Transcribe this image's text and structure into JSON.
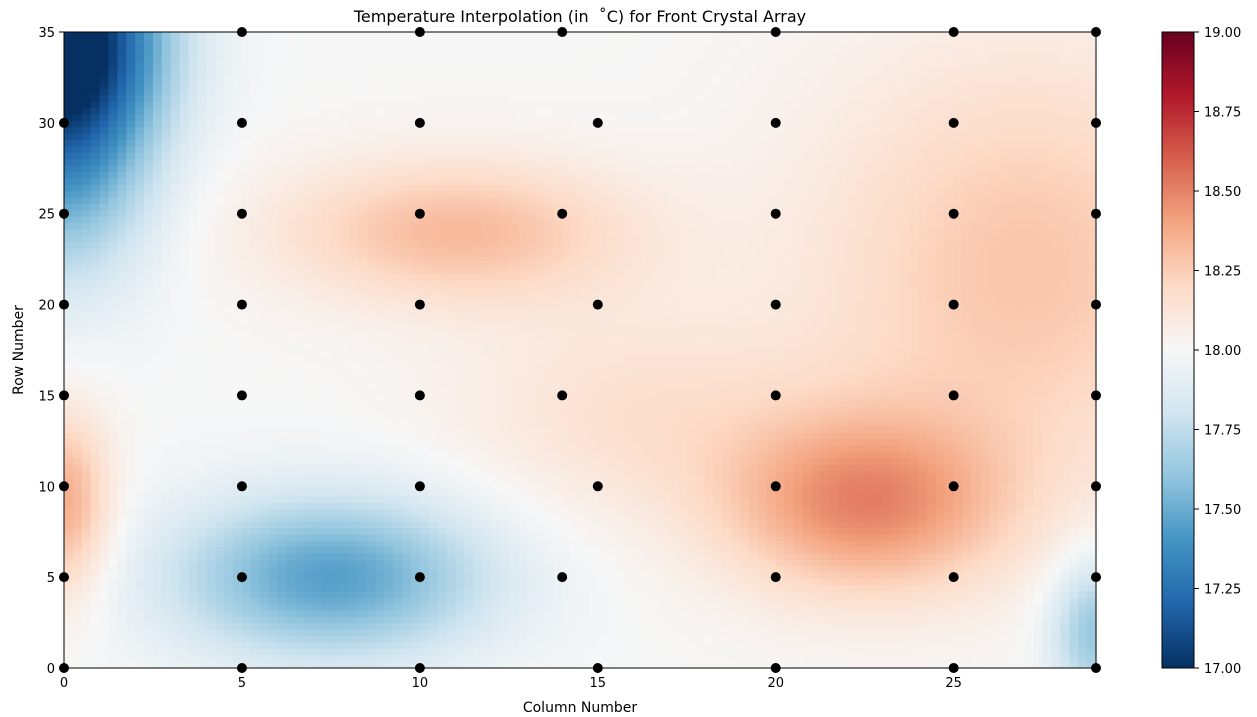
{
  "chart_data": {
    "type": "heatmap",
    "title": "Temperature Interpolation (in  ˚C) for Front Crystal Array",
    "xlabel": "Column Number",
    "ylabel": "Row Number",
    "xlim": [
      0,
      29
    ],
    "ylim": [
      0,
      35
    ],
    "x_ticks": [
      0,
      5,
      10,
      15,
      20,
      25
    ],
    "y_ticks": [
      0,
      5,
      10,
      15,
      20,
      25,
      30,
      35
    ],
    "colormap": "RdBu_r",
    "colorbar": {
      "min": 17.0,
      "max": 19.0,
      "ticks": [
        "17.00",
        "17.25",
        "17.50",
        "17.75",
        "18.00",
        "18.25",
        "18.50",
        "18.75",
        "19.00"
      ]
    },
    "grid": false,
    "sensor_points": [
      [
        0,
        0
      ],
      [
        5,
        0
      ],
      [
        10,
        0
      ],
      [
        15,
        0
      ],
      [
        20,
        0
      ],
      [
        25,
        0
      ],
      [
        29,
        0
      ],
      [
        0,
        5
      ],
      [
        5,
        5
      ],
      [
        10,
        5
      ],
      [
        14,
        5
      ],
      [
        20,
        5
      ],
      [
        25,
        5
      ],
      [
        29,
        5
      ],
      [
        0,
        10
      ],
      [
        5,
        10
      ],
      [
        10,
        10
      ],
      [
        15,
        10
      ],
      [
        20,
        10
      ],
      [
        25,
        10
      ],
      [
        29,
        10
      ],
      [
        0,
        15
      ],
      [
        5,
        15
      ],
      [
        10,
        15
      ],
      [
        14,
        15
      ],
      [
        20,
        15
      ],
      [
        25,
        15
      ],
      [
        29,
        15
      ],
      [
        0,
        20
      ],
      [
        5,
        20
      ],
      [
        10,
        20
      ],
      [
        15,
        20
      ],
      [
        20,
        20
      ],
      [
        25,
        20
      ],
      [
        29,
        20
      ],
      [
        0,
        25
      ],
      [
        5,
        25
      ],
      [
        10,
        25
      ],
      [
        14,
        25
      ],
      [
        20,
        25
      ],
      [
        25,
        25
      ],
      [
        29,
        25
      ],
      [
        0,
        30
      ],
      [
        5,
        30
      ],
      [
        10,
        30
      ],
      [
        15,
        30
      ],
      [
        20,
        30
      ],
      [
        25,
        30
      ],
      [
        29,
        30
      ],
      [
        5,
        35
      ],
      [
        10,
        35
      ],
      [
        14,
        35
      ],
      [
        20,
        35
      ],
      [
        25,
        35
      ],
      [
        29,
        35
      ]
    ],
    "field_estimate": {
      "baseline": 18.0,
      "features": [
        {
          "x": 0,
          "y": 35,
          "delta": -1.0,
          "spread_x": 2.8,
          "spread_y": 6.0
        },
        {
          "x": 0,
          "y": 28,
          "delta": -0.5,
          "spread_x": 2.5,
          "spread_y": 7.0
        },
        {
          "x": 7.5,
          "y": 5,
          "delta": -0.55,
          "spread_x": 4.5,
          "spread_y": 4.5
        },
        {
          "x": 11,
          "y": 24,
          "delta": 0.32,
          "spread_x": 5.0,
          "spread_y": 4.0
        },
        {
          "x": 22.5,
          "y": 9,
          "delta": 0.45,
          "spread_x": 4.0,
          "spread_y": 5.0
        },
        {
          "x": 27,
          "y": 22,
          "delta": 0.28,
          "spread_x": 6.0,
          "spread_y": 12.0
        },
        {
          "x": 0,
          "y": 9,
          "delta": 0.38,
          "spread_x": 1.3,
          "spread_y": 5.0
        },
        {
          "x": 29,
          "y": 2,
          "delta": -0.4,
          "spread_x": 1.3,
          "spread_y": 4.0
        },
        {
          "x": 16,
          "y": 14,
          "delta": 0.15,
          "spread_x": 5.0,
          "spread_y": 6.0
        }
      ]
    }
  }
}
